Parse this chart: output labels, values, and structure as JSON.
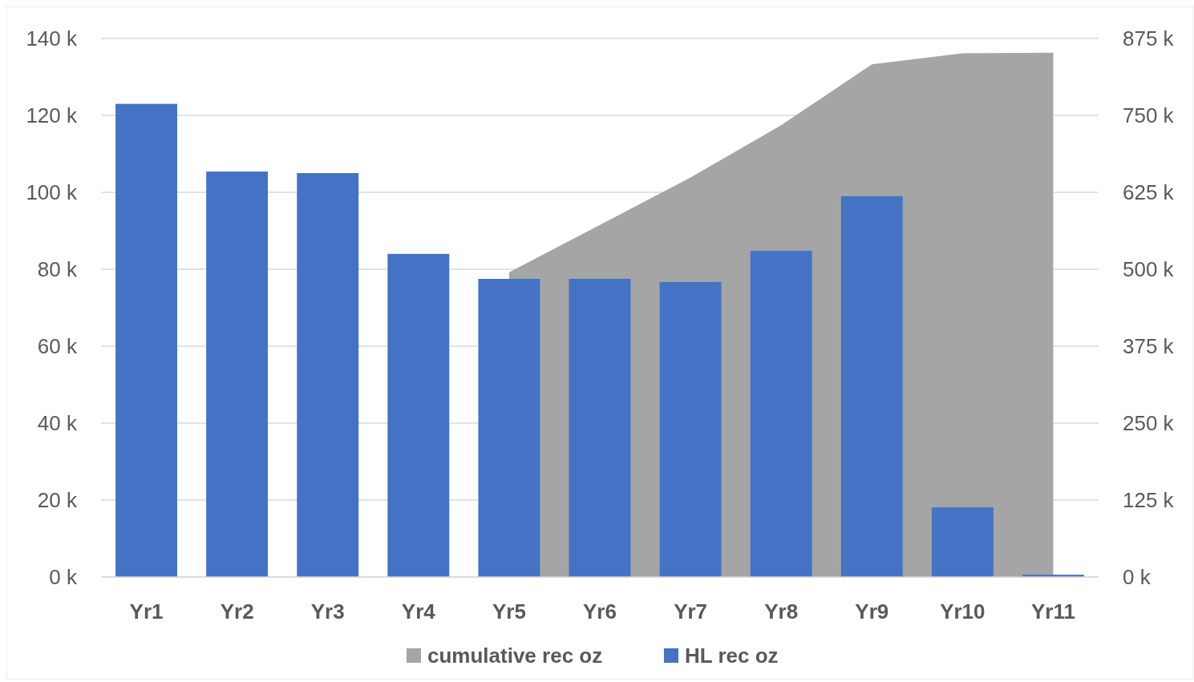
{
  "chart_data": {
    "type": "bar",
    "categories": [
      "Yr1",
      "Yr2",
      "Yr3",
      "Yr4",
      "Yr5",
      "Yr6",
      "Yr7",
      "Yr8",
      "Yr9",
      "Yr10",
      "Yr11"
    ],
    "series": [
      {
        "name": "cumulative rec oz",
        "type": "area",
        "axis": "y2",
        "color": "#a5a5a5",
        "values": [
          null,
          null,
          null,
          null,
          495000,
          572000,
          649000,
          734000,
          833000,
          851000,
          852000
        ]
      },
      {
        "name": "HL rec oz",
        "color": "#4472c4",
        "values": [
          123000,
          105400,
          105000,
          84000,
          77500,
          77500,
          76700,
          84800,
          99000,
          18100,
          600
        ]
      }
    ],
    "ylim": [
      0,
      140000
    ],
    "yticks": [
      {
        "value": 0,
        "label": "0 k"
      },
      {
        "value": 20000,
        "label": "20 k"
      },
      {
        "value": 40000,
        "label": "40 k"
      },
      {
        "value": 60000,
        "label": "60 k"
      },
      {
        "value": 80000,
        "label": "80 k"
      },
      {
        "value": 100000,
        "label": "100 k"
      },
      {
        "value": 120000,
        "label": "120 k"
      },
      {
        "value": 140000,
        "label": "140 k"
      }
    ],
    "y2lim": [
      0,
      875000
    ],
    "y2ticks": [
      {
        "value": 0,
        "label": "0 k"
      },
      {
        "value": 125000,
        "label": "125 k"
      },
      {
        "value": 250000,
        "label": "250 k"
      },
      {
        "value": 375000,
        "label": "375 k"
      },
      {
        "value": 500000,
        "label": "500 k"
      },
      {
        "value": 625000,
        "label": "625 k"
      },
      {
        "value": 750000,
        "label": "750 k"
      },
      {
        "value": 875000,
        "label": "875 k"
      }
    ],
    "grid": "y",
    "legend": "bottom"
  }
}
